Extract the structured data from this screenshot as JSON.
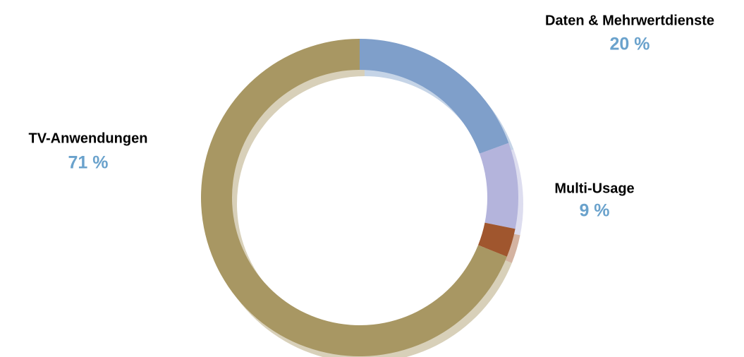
{
  "chart_data": {
    "type": "donut",
    "categories": [
      "Daten & Mehrwertdienste",
      "Multi-Usage",
      null,
      "TV-Anwendungen"
    ],
    "values": [
      20,
      9,
      3,
      71
    ],
    "value_labels": [
      "20 %",
      "9 %",
      null,
      "71 %"
    ],
    "colors": [
      "#7f9fca",
      "#b4b4dc",
      "#a0562e",
      "#a89763"
    ]
  }
}
